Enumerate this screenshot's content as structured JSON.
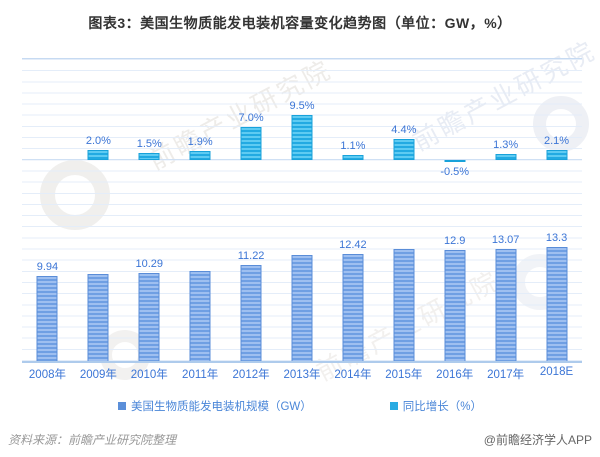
{
  "header": {
    "title": "图表3：美国生物质能发电装机容量变化趋势图（单位：GW，%）"
  },
  "chart_data": {
    "type": "bar",
    "title": "图表3：美国生物质能发电装机容量变化趋势图（单位：GW，%）",
    "categories": [
      "2008年",
      "2009年",
      "2010年",
      "2011年",
      "2012年",
      "2013年",
      "2014年",
      "2015年",
      "2016年",
      "2017年",
      "2018E"
    ],
    "series": [
      {
        "name": "美国生物质能发电装机规模（GW）",
        "unit": "GW",
        "color": "#6f9fe3",
        "values": [
          9.94,
          10.14,
          10.29,
          10.49,
          11.22,
          12.28,
          12.42,
          12.97,
          12.9,
          13.07,
          13.3
        ],
        "labels": [
          "9.94",
          "",
          "10.29",
          "",
          "11.22",
          "",
          "12.42",
          "",
          "12.9",
          "13.07",
          "13.3"
        ]
      },
      {
        "name": "同比增长（%）",
        "unit": "%",
        "color": "#29abe2",
        "values": [
          null,
          2.0,
          1.5,
          1.9,
          7.0,
          9.5,
          1.1,
          4.4,
          -0.5,
          1.3,
          2.1
        ],
        "labels": [
          "",
          "2.0%",
          "1.5%",
          "1.9%",
          "7.0%",
          "9.5%",
          "1.1%",
          "4.4%",
          "-0.5%",
          "1.3%",
          "2.1%"
        ]
      }
    ],
    "grid": true,
    "legend_position": "bottom"
  },
  "legend": {
    "items": [
      {
        "label": "美国生物质能发电装机规模（GW）",
        "color": "#5b8fd9"
      },
      {
        "label": "同比增长（%）",
        "color": "#29abe2"
      }
    ]
  },
  "footer": {
    "source": "资料来源：前瞻产业研究院整理",
    "brand": "@前瞻经济学人APP"
  },
  "watermark": {
    "text": "前瞻产业研究院"
  }
}
